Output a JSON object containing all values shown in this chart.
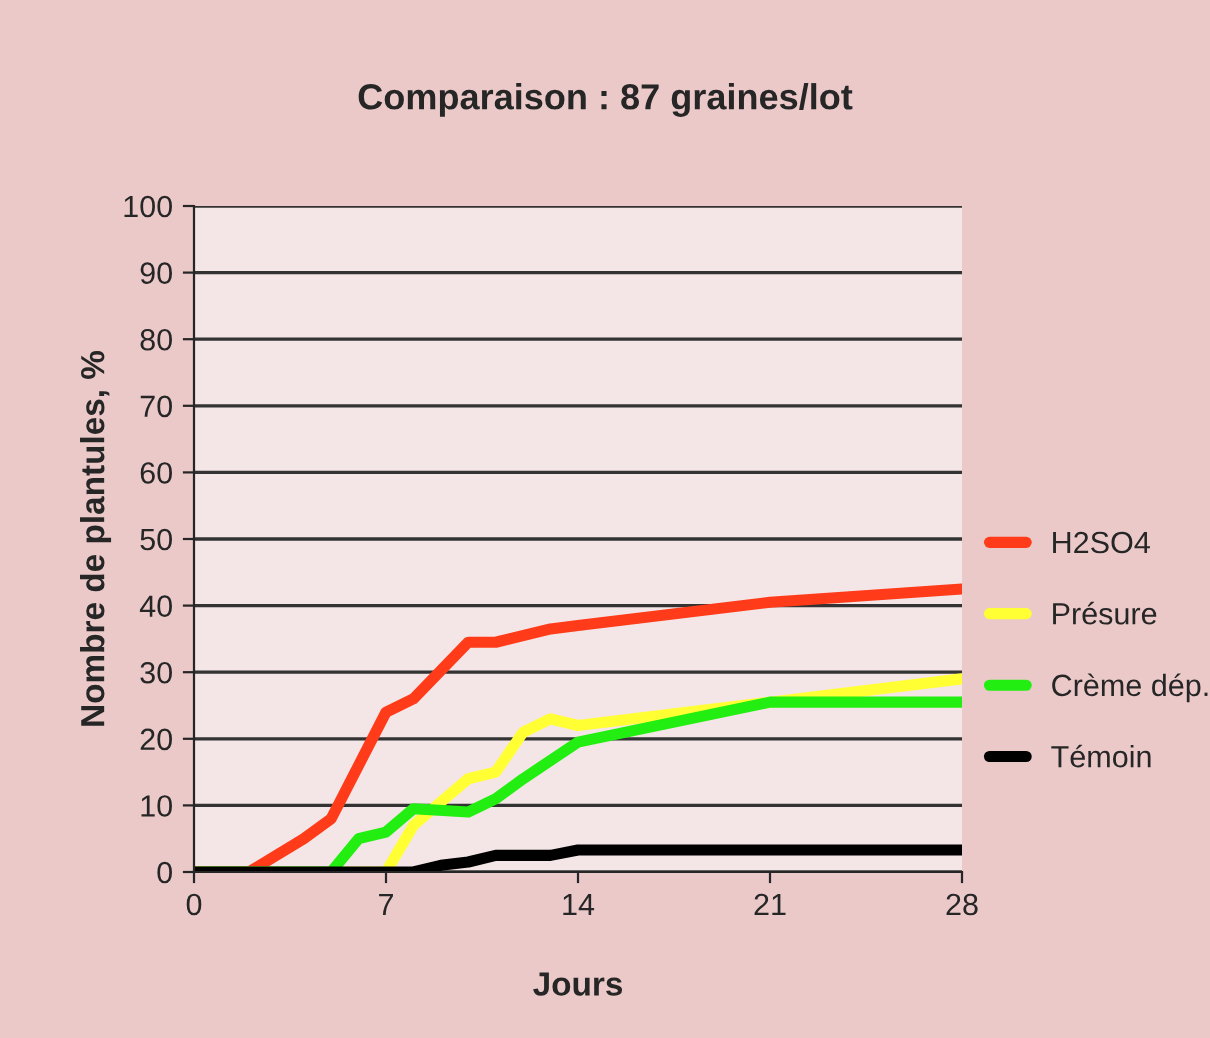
{
  "chart_data": {
    "type": "line",
    "title": "Comparaison : 87 graines/lot",
    "xlabel": "Jours",
    "ylabel": "Nombre de plantules, %",
    "xlim": [
      0,
      28
    ],
    "xticks": [
      0,
      7,
      14,
      21,
      28
    ],
    "ylim": [
      0,
      100
    ],
    "yticks": [
      0,
      10,
      20,
      30,
      40,
      50,
      60,
      70,
      80,
      90,
      100
    ],
    "grid": "y",
    "legend": "right",
    "marker": "none",
    "line_style": "solid",
    "series": [
      {
        "name": "H2SO4",
        "color": "#ff3b1a",
        "x": [
          0,
          2,
          4,
          5,
          7,
          8,
          10,
          11,
          13,
          14,
          21,
          28
        ],
        "values": [
          0,
          0,
          5,
          8,
          24,
          26,
          34.5,
          34.5,
          36.5,
          37,
          40.5,
          42.5
        ]
      },
      {
        "name": "Présure",
        "color": "#ffff33",
        "x": [
          0,
          7,
          8,
          10,
          11,
          12,
          13,
          14,
          21,
          28
        ],
        "values": [
          0,
          0,
          7,
          14,
          15,
          21,
          23,
          22,
          25.5,
          29
        ]
      },
      {
        "name": "Crème dép.",
        "color": "#22ee11",
        "x": [
          0,
          5,
          6,
          7,
          8,
          10,
          11,
          12,
          14,
          21,
          28
        ],
        "values": [
          0,
          0,
          5,
          6,
          9.5,
          9,
          11,
          14,
          19.5,
          25.5,
          25.5
        ]
      },
      {
        "name": "Témoin",
        "color": "#000000",
        "x": [
          0,
          8,
          9,
          10,
          11,
          13,
          14,
          28
        ],
        "values": [
          0,
          0,
          1,
          1.5,
          2.5,
          2.5,
          3.3,
          3.3
        ]
      }
    ]
  }
}
